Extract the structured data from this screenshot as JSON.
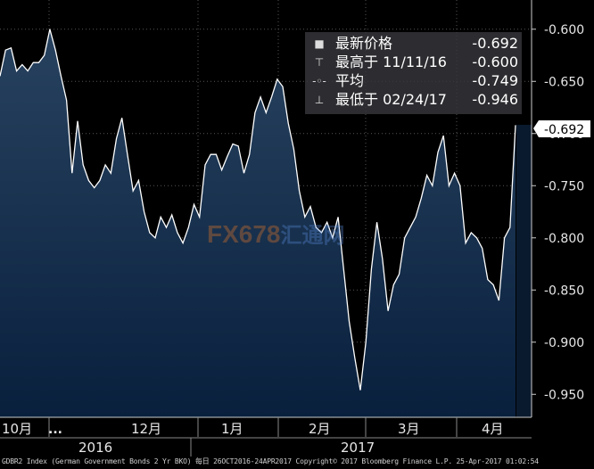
{
  "chart_data": {
    "type": "area",
    "legend": {
      "items": [
        {
          "label": "最新价格",
          "value": "-0.692"
        },
        {
          "label": "最高于 11/11/16",
          "value": "-0.600"
        },
        {
          "label": "平均",
          "value": "-0.749"
        },
        {
          "label": "最低于 02/24/17",
          "value": "-0.946"
        }
      ]
    },
    "last_price_label": "-0.692",
    "y_ticks": [
      -0.6,
      -0.65,
      -0.7,
      -0.75,
      -0.8,
      -0.85,
      -0.9,
      -0.95
    ],
    "y_tick_labels": [
      "-0.600",
      "-0.650",
      "-0.700",
      "-0.750",
      "-0.800",
      "-0.850",
      "-0.900",
      "-0.950"
    ],
    "ylim": [
      -0.972,
      -0.572
    ],
    "x_month_labels": [
      "10月",
      "12月",
      "1月",
      "2月",
      "3月",
      "4月"
    ],
    "x_more_label": "...",
    "x_year_labels": [
      "2016",
      "2017"
    ],
    "series": [
      {
        "values": [
          -0.645,
          -0.62,
          -0.618,
          -0.64,
          -0.634,
          -0.64,
          -0.632,
          -0.632,
          -0.625,
          -0.6,
          -0.62,
          -0.645,
          -0.668,
          -0.738,
          -0.688,
          -0.73,
          -0.745,
          -0.752,
          -0.745,
          -0.73,
          -0.738,
          -0.705,
          -0.685,
          -0.72,
          -0.755,
          -0.745,
          -0.775,
          -0.795,
          -0.8,
          -0.78,
          -0.79,
          -0.778,
          -0.795,
          -0.805,
          -0.79,
          -0.768,
          -0.78,
          -0.73,
          -0.72,
          -0.72,
          -0.735,
          -0.722,
          -0.71,
          -0.712,
          -0.738,
          -0.72,
          -0.68,
          -0.665,
          -0.68,
          -0.665,
          -0.648,
          -0.655,
          -0.69,
          -0.715,
          -0.755,
          -0.78,
          -0.77,
          -0.79,
          -0.795,
          -0.785,
          -0.8,
          -0.78,
          -0.83,
          -0.88,
          -0.915,
          -0.946,
          -0.9,
          -0.83,
          -0.785,
          -0.82,
          -0.87,
          -0.845,
          -0.835,
          -0.8,
          -0.79,
          -0.78,
          -0.762,
          -0.74,
          -0.75,
          -0.718,
          -0.702,
          -0.75,
          -0.738,
          -0.75,
          -0.805,
          -0.795,
          -0.8,
          -0.81,
          -0.84,
          -0.845,
          -0.86,
          -0.8,
          -0.79,
          -0.692
        ]
      }
    ],
    "colors": {
      "background": "#000000",
      "area_top": "#27425f",
      "area_bottom": "#09203d",
      "line": "#ffffff",
      "grid": "#5a5a5a"
    }
  },
  "footer": {
    "text": "GDBR2 Index (German Government Bonds 2 Yr BKO)  每日 26OCT2016-24APR2017 Copyright© 2017 Bloomberg Finance L.P. 25-Apr-2017 01:02:54"
  },
  "watermark": {
    "brand": "FX678",
    "suffix": "汇通网"
  }
}
